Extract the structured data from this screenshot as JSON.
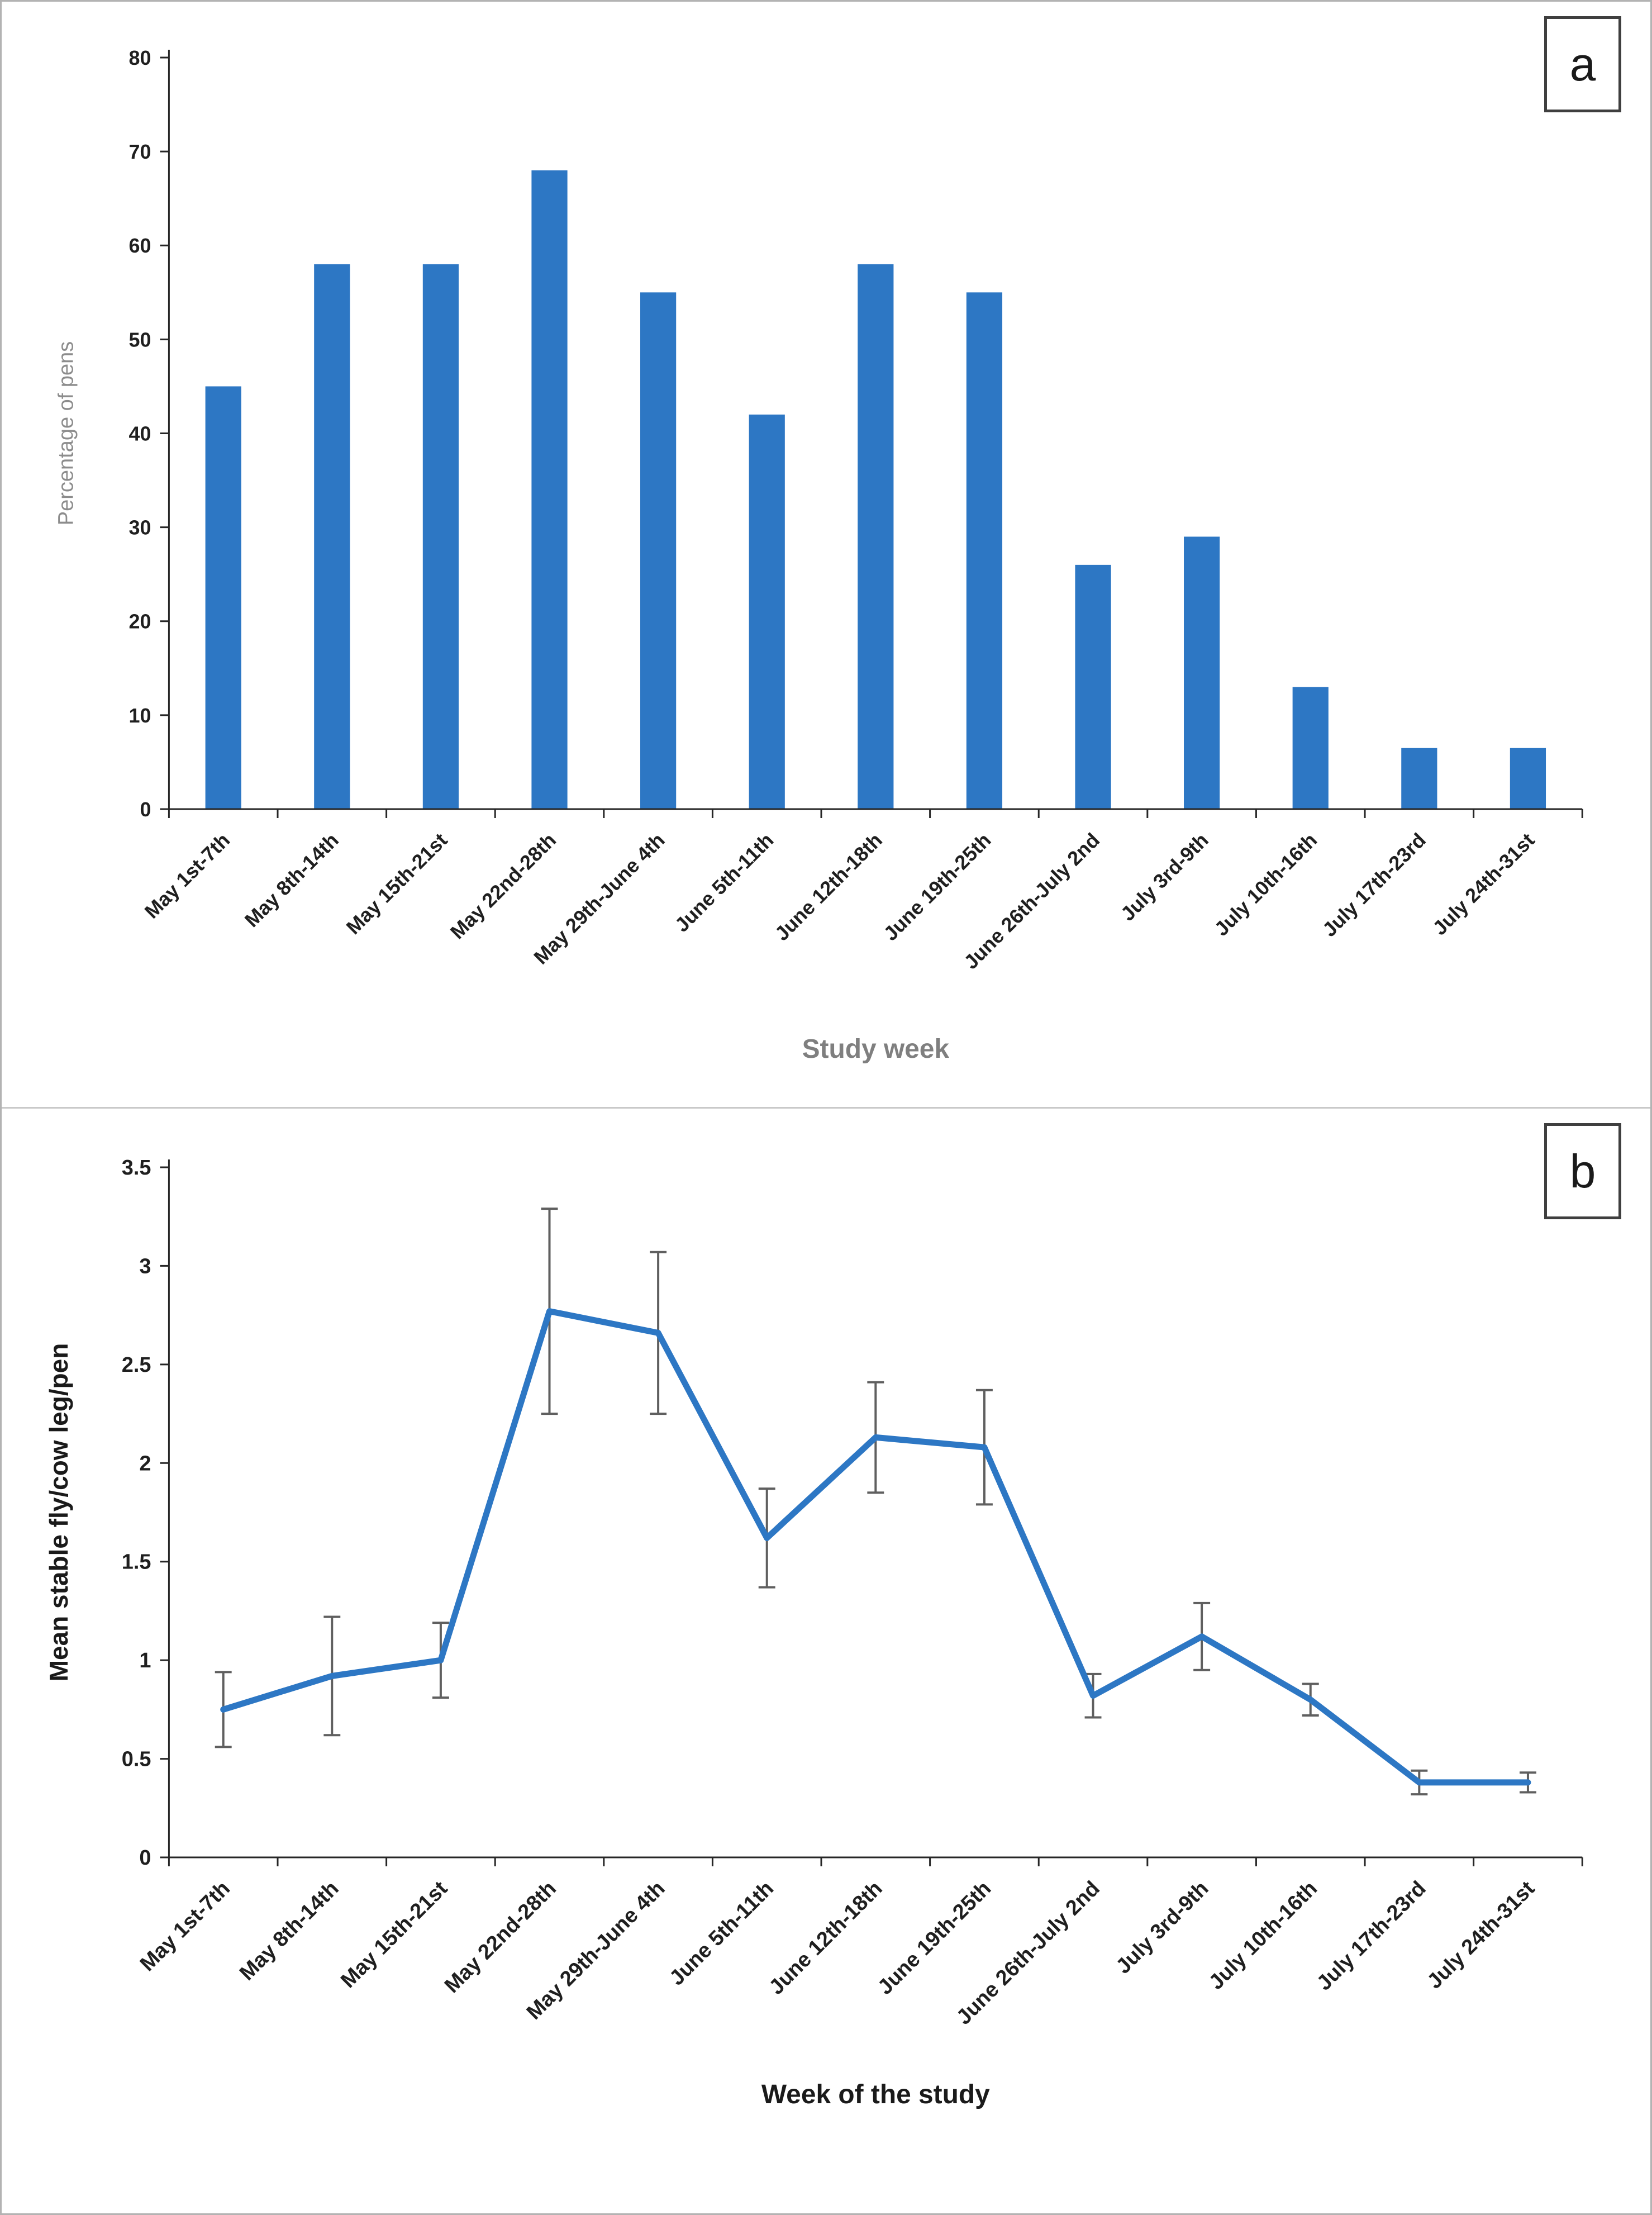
{
  "figure": {
    "panel_a_label": "a",
    "panel_b_label": "b"
  },
  "chart_data": [
    {
      "type": "bar",
      "panel": "a",
      "title": "",
      "xlabel": "Study week",
      "ylabel": "Percentage of pens",
      "ylim": [
        0,
        80
      ],
      "ytick_step": 10,
      "grid": false,
      "legend": false,
      "bar_color": "#2d77c4",
      "categories": [
        "May 1st-7th",
        "May 8th-14th",
        "May 15th-21st",
        "May 22nd-28th",
        "May 29th-June 4th",
        "June 5th-11th",
        "June 12th-18th",
        "June 19th-25th",
        "June 26th-July 2nd",
        "July 3rd-9th",
        "July 10th-16th",
        "July 17th-23rd",
        "July 24th-31st"
      ],
      "values": [
        45,
        58,
        58,
        68,
        55,
        42,
        58,
        55,
        26,
        29,
        13,
        6.5,
        6.5
      ]
    },
    {
      "type": "line",
      "panel": "b",
      "title": "",
      "xlabel": "Week of the study",
      "ylabel": "Mean stable fly/cow leg/pen",
      "ylim": [
        0,
        3.5
      ],
      "ytick_step": 0.5,
      "grid": false,
      "legend": false,
      "line_color": "#2d77c4",
      "error_bar_color": "#5f5f5f",
      "categories": [
        "May 1st-7th",
        "May 8th-14th",
        "May 15th-21st",
        "May 22nd-28th",
        "May 29th-June 4th",
        "June 5th-11th",
        "June 12th-18th",
        "June 19th-25th",
        "June 26th-July 2nd",
        "July 3rd-9th",
        "July 10th-16th",
        "July 17th-23rd",
        "July 24th-31st"
      ],
      "values": [
        0.75,
        0.92,
        1.0,
        2.77,
        2.66,
        1.62,
        2.13,
        2.08,
        0.82,
        1.12,
        0.8,
        0.38,
        0.38
      ],
      "error_bars": [
        0.19,
        0.3,
        0.19,
        0.52,
        0.41,
        0.25,
        0.28,
        0.29,
        0.11,
        0.17,
        0.08,
        0.06,
        0.05
      ]
    }
  ]
}
